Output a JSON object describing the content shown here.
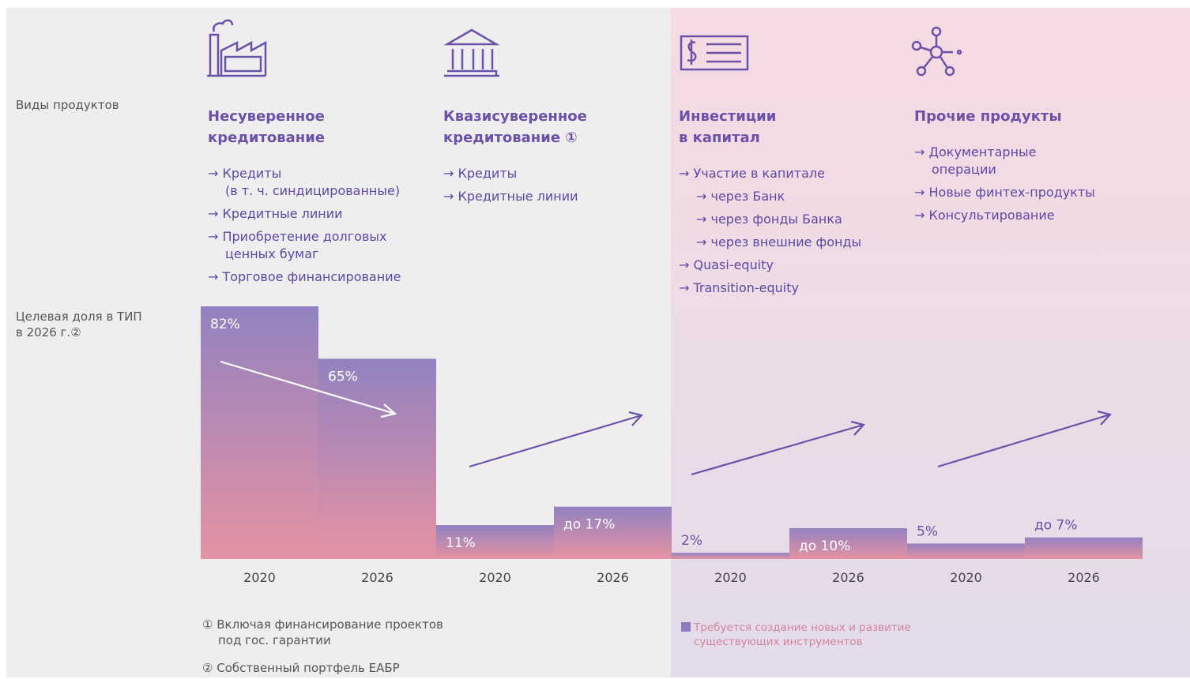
{
  "row_labels": {
    "products": "Виды продуктов",
    "share": "Целевая доля в ТИП\nв 2026 г.②"
  },
  "products": [
    {
      "title_lines": [
        "Несуверенное",
        "кредитование"
      ],
      "items": [
        {
          "text": "→ Кредиты\n(в т. ч. синдицированные)"
        },
        {
          "text": "→ Кредитные линии"
        },
        {
          "text": "→ Приобретение долговых\nценных бумаг"
        },
        {
          "text": "→ Торговое финансирование"
        }
      ]
    },
    {
      "title_lines": [
        "Квазисуверенное",
        "кредитование ①"
      ],
      "items": [
        {
          "text": "→ Кредиты"
        },
        {
          "text": "→ Кредитные линии"
        }
      ]
    },
    {
      "title_lines": [
        "Инвестиции",
        "в капитал"
      ],
      "items": [
        {
          "text": "→ Участие в капитале",
          "subitems": [
            "→ через Банк",
            "→ через фонды Банка",
            "→ через внешние фонды"
          ]
        },
        {
          "text": "→ Quasi-equity"
        },
        {
          "text": "→ Transition-equity"
        }
      ]
    },
    {
      "title_lines": [
        "Прочие продукты"
      ],
      "items": [
        {
          "text": "→ Документарные\nоперации"
        },
        {
          "text": "→ Новые финтех-продукты"
        },
        {
          "text": "→ Консультирование"
        }
      ]
    }
  ],
  "chart_data": {
    "type": "bar",
    "categories": [
      "2020",
      "2026",
      "2020",
      "2026",
      "2020",
      "2026",
      "2020",
      "2026"
    ],
    "values": [
      82,
      65,
      11,
      17,
      2,
      10,
      5,
      7
    ],
    "value_labels": [
      "82%",
      "65%",
      "11%",
      "до 17%",
      "2%",
      "до 10%",
      "5%",
      "до 7%"
    ],
    "ylim": [
      0,
      82
    ],
    "color_top": "#9282c0",
    "color_bottom": "#e592a3"
  },
  "footnotes": [
    "① Включая финансирование проектов\nпод гос. гарантии",
    "② Собственный портфель ЕАБР"
  ],
  "legend": {
    "text": "Требуется создание новых и развитие\nсуществующих инструментов",
    "color": "#8f7bbf"
  }
}
